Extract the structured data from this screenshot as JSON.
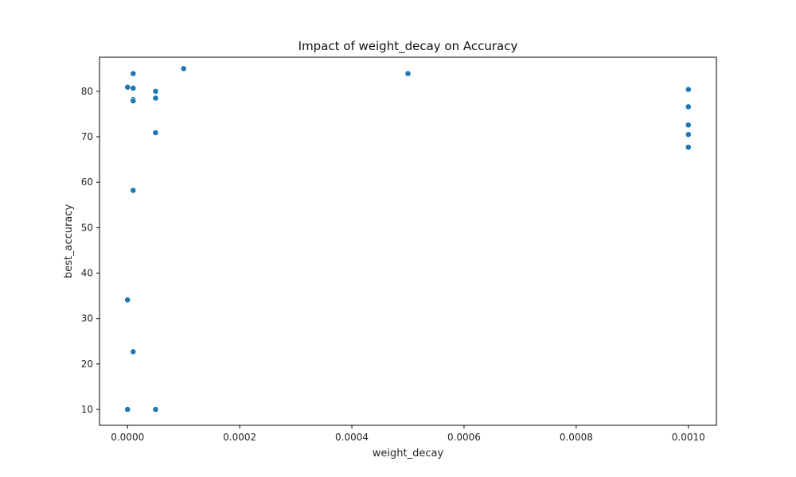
{
  "chart_data": {
    "type": "scatter",
    "title": "Impact of weight_decay on Accuracy",
    "xlabel": "weight_decay",
    "ylabel": "best_accuracy",
    "xlim": [
      -5e-05,
      0.00105
    ],
    "ylim": [
      6.5,
      87.5
    ],
    "xticks": [
      0,
      0.0002,
      0.0004,
      0.0006,
      0.0008,
      0.001
    ],
    "xtick_labels": [
      "0.0000",
      "0.0002",
      "0.0004",
      "0.0006",
      "0.0008",
      "0.0010"
    ],
    "yticks": [
      10,
      20,
      30,
      40,
      50,
      60,
      70,
      80
    ],
    "ytick_labels": [
      "10",
      "20",
      "30",
      "40",
      "50",
      "60",
      "70",
      "80"
    ],
    "grid": false,
    "marker_color": "#1f77b4",
    "points": [
      {
        "x": 0.0,
        "y": 80.9
      },
      {
        "x": 0.0,
        "y": 34.1
      },
      {
        "x": 0.0,
        "y": 10.0
      },
      {
        "x": 1e-05,
        "y": 83.9
      },
      {
        "x": 1e-05,
        "y": 80.7
      },
      {
        "x": 1e-05,
        "y": 78.2
      },
      {
        "x": 1e-05,
        "y": 77.9
      },
      {
        "x": 1e-05,
        "y": 58.2
      },
      {
        "x": 1e-05,
        "y": 22.7
      },
      {
        "x": 5e-05,
        "y": 80.0
      },
      {
        "x": 5e-05,
        "y": 78.5
      },
      {
        "x": 5e-05,
        "y": 70.9
      },
      {
        "x": 5e-05,
        "y": 10.0
      },
      {
        "x": 0.0001,
        "y": 85.0
      },
      {
        "x": 0.0005,
        "y": 83.9
      },
      {
        "x": 0.001,
        "y": 80.4
      },
      {
        "x": 0.001,
        "y": 76.6
      },
      {
        "x": 0.001,
        "y": 72.6
      },
      {
        "x": 0.001,
        "y": 70.5
      },
      {
        "x": 0.001,
        "y": 67.7
      }
    ]
  }
}
